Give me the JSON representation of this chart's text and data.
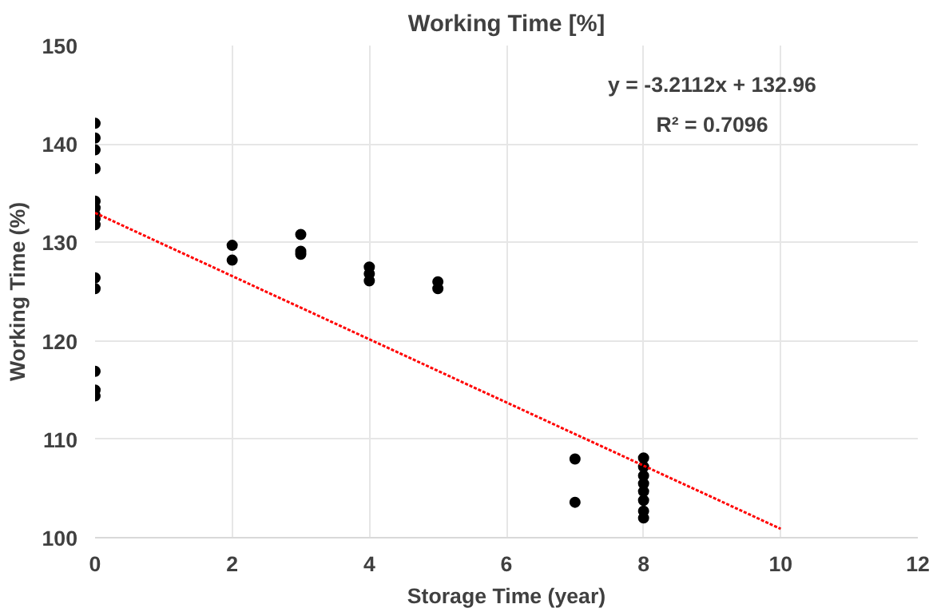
{
  "chart_data": {
    "type": "scatter",
    "title": "Working Time [%]",
    "xlabel": "Storage Time (year)",
    "ylabel": "Working Time (%)",
    "xlim": [
      0,
      12
    ],
    "xticks": [
      0,
      2,
      4,
      6,
      8,
      10,
      12
    ],
    "ylim": [
      100,
      150
    ],
    "yticks": [
      100,
      110,
      120,
      130,
      140,
      150
    ],
    "grid": true,
    "series": [
      {
        "color": "#000000",
        "marker": "circle",
        "x": [
          0,
          0,
          0,
          0,
          0,
          0,
          0,
          0,
          0,
          0,
          0,
          0,
          0,
          0,
          2,
          2,
          3,
          3,
          3,
          4,
          4,
          4,
          5,
          5,
          7,
          7,
          8,
          8,
          8,
          8,
          8,
          8,
          8,
          8
        ],
        "values": [
          142.1,
          140.6,
          139.4,
          137.5,
          134.2,
          133.5,
          132.8,
          132.4,
          131.8,
          126.4,
          125.3,
          116.9,
          115.0,
          114.4,
          129.7,
          128.2,
          130.8,
          129.1,
          128.8,
          127.5,
          126.8,
          126.1,
          126.0,
          125.3,
          108.0,
          103.6,
          108.1,
          107.2,
          106.3,
          105.5,
          104.7,
          103.8,
          102.7,
          102.0
        ]
      },
      {
        "type": "line",
        "color": "#ff0000",
        "line_style": "dotted",
        "x": [
          0,
          10
        ],
        "values": [
          133.0,
          100.9
        ]
      }
    ],
    "annotations": [
      "y = -3.2112x + 132.96",
      "R² = 0.7096"
    ]
  }
}
